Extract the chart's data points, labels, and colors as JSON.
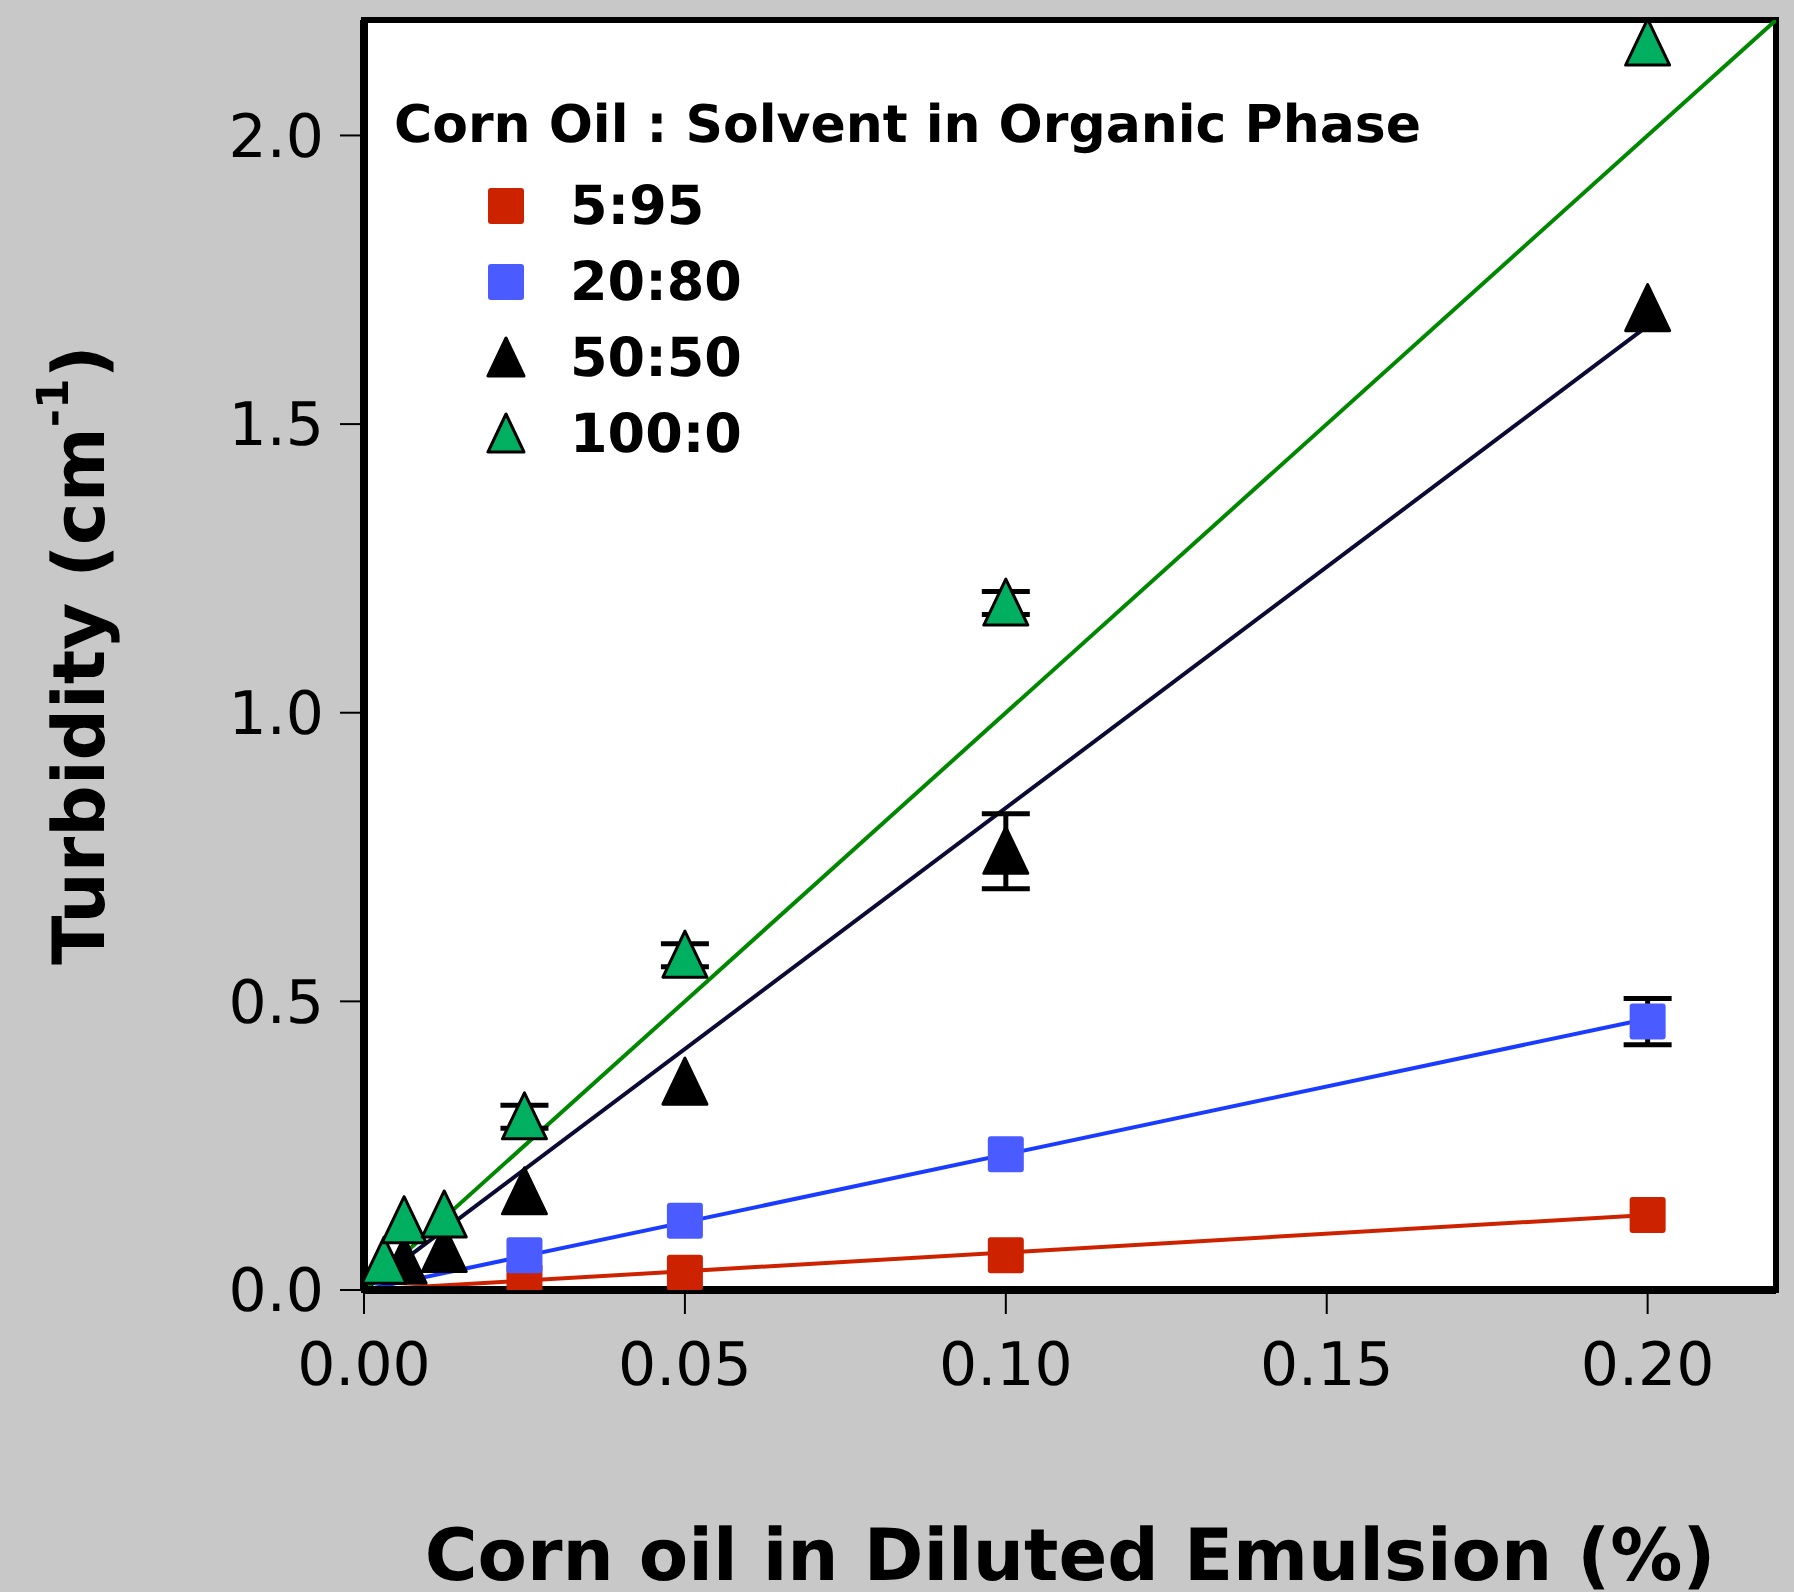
{
  "chart_data": {
    "type": "scatter",
    "xlabel": "Corn oil in Diluted Emulsion (%)",
    "ylabel": "Turbidity (cm$^{-1}$)",
    "legend_title": "Corn Oil : Solvent in Organic Phase",
    "legend": "top left",
    "xlim": [
      0,
      0.22
    ],
    "ylim": [
      0,
      2.2
    ],
    "xticks": [
      {
        "value": 0,
        "label": "0.00"
      },
      {
        "value": 0.05,
        "label": "0.05"
      },
      {
        "value": 0.1,
        "label": "0.10"
      },
      {
        "value": 0.15,
        "label": "0.15"
      },
      {
        "value": 0.2,
        "label": "0.20"
      }
    ],
    "yticks": [
      {
        "value": 0,
        "label": "0.0"
      },
      {
        "value": 0.5,
        "label": "0.5"
      },
      {
        "value": 1,
        "label": "1.0"
      },
      {
        "value": 1.5,
        "label": "1.5"
      },
      {
        "value": 2,
        "label": "2.0"
      }
    ],
    "x": [
      0.003125,
      0.00625,
      0.0125,
      0.025,
      0.05,
      0.1,
      0.2
    ],
    "series": [
      {
        "name": "5:95",
        "color": "#cc2200",
        "marker": "square",
        "values": [
          null,
          null,
          null,
          0.015,
          0.03,
          0.06,
          0.13
        ]
      },
      {
        "name": "20:80",
        "color": "#4a5cff",
        "marker": "square",
        "values": [
          null,
          null,
          null,
          0.06,
          0.12,
          0.235,
          0.465
        ],
        "errors": [
          null,
          null,
          null,
          null,
          null,
          null,
          0.04
        ]
      },
      {
        "name": "50:50",
        "color": "#000000",
        "marker": "triangle",
        "values": [
          null,
          0.05,
          0.07,
          0.17,
          0.36,
          0.76,
          1.7
        ],
        "errors": [
          null,
          null,
          null,
          null,
          null,
          0.065,
          null
        ]
      },
      {
        "name": "100:0",
        "color": "#00b060",
        "marker": "triangle",
        "values": [
          0.05,
          0.12,
          0.13,
          0.3,
          0.58,
          1.19,
          2.16
        ],
        "errors": [
          null,
          null,
          null,
          0.02,
          0.02,
          0.02,
          null
        ]
      },
      {
        "type": "line",
        "color": "#cc2200",
        "marker": "none",
        "x": [
          0,
          0.2
        ],
        "values": [
          0,
          0.13
        ]
      },
      {
        "type": "line",
        "color": "#1a3cff",
        "marker": "none",
        "x": [
          0,
          0.2
        ],
        "values": [
          0,
          0.47
        ]
      },
      {
        "type": "line",
        "color": "#0a0a33",
        "marker": "none",
        "x": [
          0,
          0.2
        ],
        "values": [
          0,
          1.67
        ]
      },
      {
        "type": "line",
        "color": "#008800",
        "marker": "none",
        "x": [
          0,
          0.22
        ],
        "values": [
          0,
          2.2
        ]
      }
    ]
  }
}
